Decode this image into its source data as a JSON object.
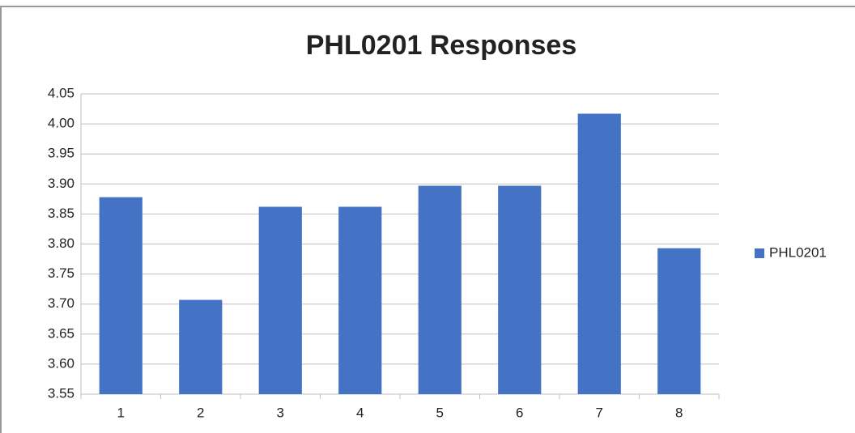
{
  "chart_data": {
    "type": "bar",
    "title": "PHL0201 Responses",
    "categories": [
      "1",
      "2",
      "3",
      "4",
      "5",
      "6",
      "7",
      "8"
    ],
    "series": [
      {
        "name": "PHL0201",
        "color": "#4472c4",
        "values": [
          3.878,
          3.707,
          3.862,
          3.862,
          3.897,
          3.897,
          4.017,
          3.793
        ]
      }
    ],
    "ylim": [
      3.55,
      4.05
    ],
    "yticks": [
      3.55,
      {
        "value": 3.6,
        "label": "3.60"
      },
      3.65,
      {
        "value": 3.7,
        "label": "3.70"
      },
      3.75,
      {
        "value": 3.8,
        "label": "3.80"
      },
      3.85,
      {
        "value": 3.9,
        "label": "3.90"
      },
      3.95,
      {
        "value": 4.0,
        "label": "4.00"
      },
      4.05
    ],
    "grid": true,
    "legend": "right"
  }
}
